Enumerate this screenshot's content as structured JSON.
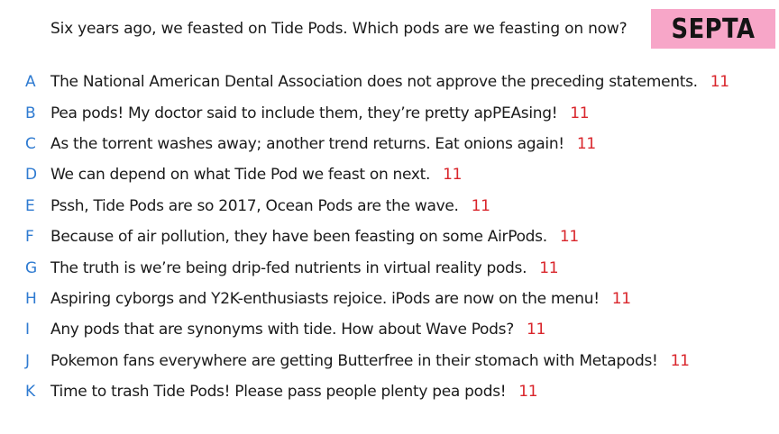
{
  "question": "Six years ago, we feasted on Tide Pods. Which pods are we feasting on now?",
  "badge": "SEPTA",
  "colors": {
    "letter": "#2f7bd1",
    "score": "#d9252b",
    "badge_bg": "#f7a6c8"
  },
  "answers": [
    {
      "letter": "A",
      "text": "The National American Dental Association does not approve the preceding statements.",
      "score": "11"
    },
    {
      "letter": "B",
      "text": "Pea pods! My doctor said to include them, they’re pretty apPEAsing!",
      "score": "11"
    },
    {
      "letter": "C",
      "text": "As the torrent washes away; another trend returns. Eat onions again!",
      "score": "11"
    },
    {
      "letter": "D",
      "text": "We can depend on what Tide Pod we feast on next.",
      "score": "11"
    },
    {
      "letter": "E",
      "text": "Pssh, Tide Pods are so 2017, Ocean Pods are the wave.",
      "score": "11"
    },
    {
      "letter": "F",
      "text": "Because of air pollution, they have been feasting on some AirPods.",
      "score": "11"
    },
    {
      "letter": "G",
      "text": "The truth is we’re being drip-fed nutrients in virtual reality pods.",
      "score": "11"
    },
    {
      "letter": "H",
      "text": "Aspiring cyborgs and Y2K-enthusiasts rejoice. iPods are now on the menu!",
      "score": "11"
    },
    {
      "letter": "I",
      "text": "Any pods that are synonyms with tide. How about Wave Pods?",
      "score": "11"
    },
    {
      "letter": "J",
      "text": "Pokemon fans everywhere are getting Butterfree in their stomach with Metapods!",
      "score": "11"
    },
    {
      "letter": "K",
      "text": "Time to trash Tide Pods! Please pass people plenty pea pods!",
      "score": "11"
    }
  ]
}
